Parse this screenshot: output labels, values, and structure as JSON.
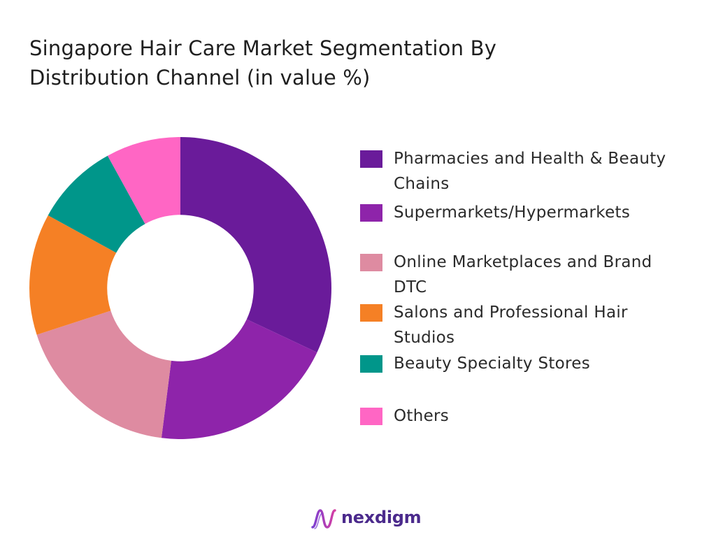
{
  "chart_data": {
    "type": "pie",
    "title_lines": [
      "Singapore Hair Care Market Segmentation By",
      "Distribution Channel (in value %)"
    ],
    "inner_radius_ratio": 0.485,
    "legend_position": "right",
    "series": [
      {
        "label_lines": [
          "Pharmacies and Health & Beauty",
          "Chains"
        ],
        "value": 32,
        "color": "#6a1b9a"
      },
      {
        "label_lines": [
          "Supermarkets/Hypermarkets"
        ],
        "value": 20,
        "color": "#8e24aa"
      },
      {
        "label_lines": [
          "Online Marketplaces and Brand",
          "DTC"
        ],
        "value": 18,
        "color": "#de8ba1"
      },
      {
        "label_lines": [
          "Salons and Professional Hair",
          "Studios"
        ],
        "value": 13,
        "color": "#f58025"
      },
      {
        "label_lines": [
          "Beauty Specialty Stores"
        ],
        "value": 9,
        "color": "#00968a"
      },
      {
        "label_lines": [
          "Others"
        ],
        "value": 8,
        "color": "#ff66c4"
      }
    ]
  },
  "brand": {
    "name": "nexdigm",
    "color": "#4b2a8c"
  }
}
